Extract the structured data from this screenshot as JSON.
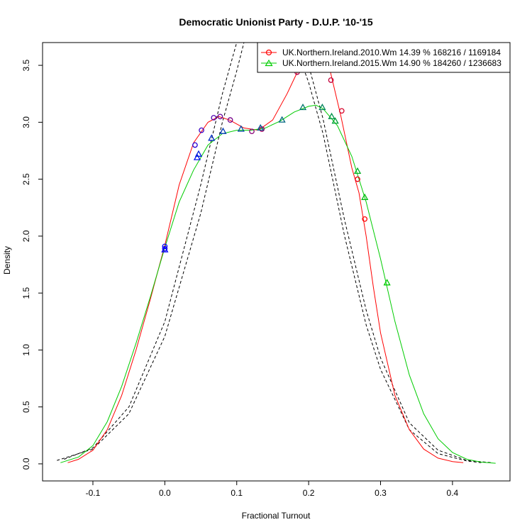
{
  "chart_data": {
    "type": "line",
    "title": "Democratic Unionist Party - D.U.P. '10-'15",
    "xlabel": "Fractional Turnout",
    "ylabel": "Density",
    "xlim": [
      -0.17,
      0.48
    ],
    "ylim": [
      -0.15,
      3.7
    ],
    "x_ticks": [
      "-0.1",
      "0.0",
      "0.1",
      "0.2",
      "0.3",
      "0.4"
    ],
    "y_ticks": [
      "0.0",
      "0.5",
      "1.0",
      "1.5",
      "2.0",
      "2.5",
      "3.0",
      "3.5"
    ],
    "legend_position": "top-right",
    "series": [
      {
        "name": "UK.Northern.Ireland.2010.Wm 14.39 % 168216 / 1169184",
        "color": "#ff0000",
        "marker": "circle",
        "curve": [
          [
            -0.135,
            0.01
          ],
          [
            -0.12,
            0.04
          ],
          [
            -0.1,
            0.12
          ],
          [
            -0.08,
            0.3
          ],
          [
            -0.06,
            0.6
          ],
          [
            -0.04,
            1.0
          ],
          [
            -0.02,
            1.45
          ],
          [
            0.0,
            1.92
          ],
          [
            0.02,
            2.45
          ],
          [
            0.04,
            2.82
          ],
          [
            0.06,
            3.0
          ],
          [
            0.075,
            3.05
          ],
          [
            0.09,
            3.02
          ],
          [
            0.11,
            2.95
          ],
          [
            0.13,
            2.93
          ],
          [
            0.15,
            3.02
          ],
          [
            0.17,
            3.25
          ],
          [
            0.185,
            3.45
          ],
          [
            0.2,
            3.62
          ],
          [
            0.215,
            3.7
          ],
          [
            0.23,
            3.45
          ],
          [
            0.245,
            3.05
          ],
          [
            0.26,
            2.6
          ],
          [
            0.27,
            2.38
          ],
          [
            0.28,
            2.0
          ],
          [
            0.29,
            1.55
          ],
          [
            0.3,
            1.15
          ],
          [
            0.32,
            0.6
          ],
          [
            0.34,
            0.3
          ],
          [
            0.36,
            0.13
          ],
          [
            0.38,
            0.05
          ],
          [
            0.4,
            0.02
          ],
          [
            0.415,
            0.01
          ]
        ],
        "points": [
          [
            0.0,
            1.91
          ],
          [
            0.0,
            1.89
          ],
          [
            0.042,
            2.8
          ],
          [
            0.051,
            2.93
          ],
          [
            0.068,
            3.04
          ],
          [
            0.077,
            3.05
          ],
          [
            0.091,
            3.02
          ],
          [
            0.121,
            2.92
          ],
          [
            0.135,
            2.94
          ],
          [
            0.184,
            3.44
          ],
          [
            0.231,
            3.37
          ],
          [
            0.246,
            3.1
          ],
          [
            0.268,
            2.5
          ],
          [
            0.278,
            2.15
          ]
        ]
      },
      {
        "name": "UK.Northern.Ireland.2015.Wm 14.90 % 184260 / 1236683",
        "color": "#00cc00",
        "marker": "triangle",
        "curve": [
          [
            -0.145,
            0.01
          ],
          [
            -0.12,
            0.06
          ],
          [
            -0.1,
            0.16
          ],
          [
            -0.08,
            0.37
          ],
          [
            -0.06,
            0.68
          ],
          [
            -0.04,
            1.06
          ],
          [
            -0.02,
            1.47
          ],
          [
            0.0,
            1.9
          ],
          [
            0.02,
            2.3
          ],
          [
            0.04,
            2.58
          ],
          [
            0.06,
            2.8
          ],
          [
            0.08,
            2.9
          ],
          [
            0.1,
            2.93
          ],
          [
            0.12,
            2.93
          ],
          [
            0.14,
            2.95
          ],
          [
            0.16,
            3.01
          ],
          [
            0.18,
            3.09
          ],
          [
            0.2,
            3.14
          ],
          [
            0.21,
            3.15
          ],
          [
            0.22,
            3.12
          ],
          [
            0.24,
            2.97
          ],
          [
            0.26,
            2.7
          ],
          [
            0.28,
            2.3
          ],
          [
            0.3,
            1.8
          ],
          [
            0.32,
            1.25
          ],
          [
            0.34,
            0.78
          ],
          [
            0.36,
            0.44
          ],
          [
            0.38,
            0.22
          ],
          [
            0.4,
            0.1
          ],
          [
            0.42,
            0.04
          ],
          [
            0.44,
            0.015
          ],
          [
            0.46,
            0.005
          ]
        ],
        "points": [
          [
            0.0,
            1.88
          ],
          [
            0.045,
            2.69
          ],
          [
            0.047,
            2.72
          ],
          [
            0.065,
            2.86
          ],
          [
            0.081,
            2.92
          ],
          [
            0.106,
            2.94
          ],
          [
            0.133,
            2.95
          ],
          [
            0.163,
            3.02
          ],
          [
            0.192,
            3.13
          ],
          [
            0.219,
            3.13
          ],
          [
            0.232,
            3.05
          ],
          [
            0.237,
            3.01
          ],
          [
            0.268,
            2.57
          ],
          [
            0.278,
            2.34
          ],
          [
            0.309,
            1.59
          ]
        ]
      }
    ],
    "reference_curves": [
      {
        "style": "dashed",
        "color": "#000000",
        "curve": [
          [
            -0.15,
            0.03
          ],
          [
            -0.1,
            0.13
          ],
          [
            -0.05,
            0.44
          ],
          [
            0.0,
            1.12
          ],
          [
            0.05,
            2.2
          ],
          [
            0.08,
            3.0
          ],
          [
            0.1,
            3.45
          ],
          [
            0.11,
            3.7
          ],
          [
            0.19,
            3.7
          ],
          [
            0.2,
            3.5
          ],
          [
            0.22,
            3.03
          ],
          [
            0.25,
            2.14
          ],
          [
            0.28,
            1.35
          ],
          [
            0.3,
            0.93
          ],
          [
            0.34,
            0.36
          ],
          [
            0.38,
            0.12
          ],
          [
            0.42,
            0.03
          ],
          [
            0.455,
            0.01
          ]
        ]
      },
      {
        "style": "dashed",
        "color": "#000000",
        "curve": [
          [
            -0.14,
            0.04
          ],
          [
            -0.1,
            0.14
          ],
          [
            -0.05,
            0.5
          ],
          [
            0.0,
            1.25
          ],
          [
            0.05,
            2.45
          ],
          [
            0.08,
            3.25
          ],
          [
            0.1,
            3.7
          ],
          [
            0.18,
            3.7
          ],
          [
            0.2,
            3.35
          ],
          [
            0.22,
            2.9
          ],
          [
            0.25,
            2.0
          ],
          [
            0.28,
            1.22
          ],
          [
            0.3,
            0.83
          ],
          [
            0.34,
            0.3
          ],
          [
            0.38,
            0.09
          ],
          [
            0.42,
            0.025
          ],
          [
            0.44,
            0.01
          ]
        ]
      }
    ]
  }
}
